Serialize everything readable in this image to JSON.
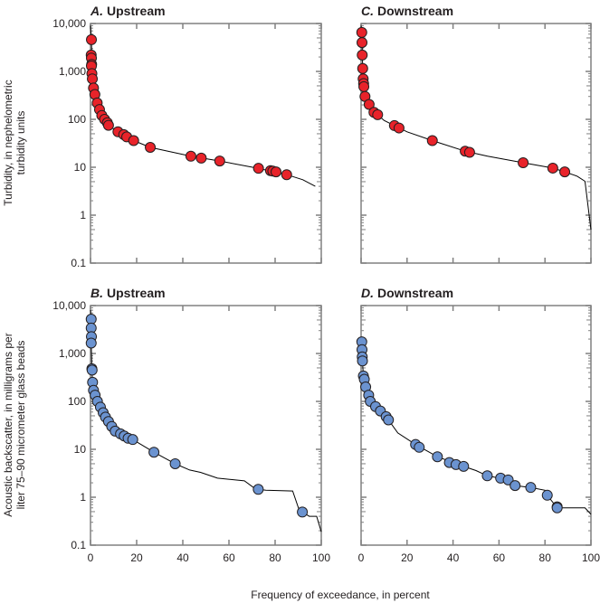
{
  "figure": {
    "xlabel": "Frequency of exceedance, in percent",
    "ylabel_top": [
      "Turbidity, in nephelometric",
      "turbidity units"
    ],
    "ylabel_bottom": [
      "Acoustic backscatter, in milligrams per",
      "liter 75–90 micrometer glass beads"
    ],
    "colors": {
      "turbidity_points": "#e8232a",
      "backscatter_points": "#6b93d0",
      "curve": "#000000",
      "axes": "#808080"
    }
  },
  "chart_data": [
    {
      "type": "scatter",
      "letter": "A.",
      "title": "Upstream",
      "xlim": [
        0,
        100
      ],
      "ylim": [
        0.1,
        10000
      ],
      "yscale": "log",
      "xticks": [
        "0",
        "20",
        "40",
        "60",
        "80",
        "100"
      ],
      "yticks": [
        "0.1",
        "1",
        "10",
        "100",
        "1,000",
        "10,000"
      ],
      "point_color": "#e8232a",
      "points": [
        [
          0.4,
          4600
        ],
        [
          0.3,
          2200
        ],
        [
          0.4,
          1900
        ],
        [
          0.5,
          1400
        ],
        [
          0.4,
          1300
        ],
        [
          0.6,
          900
        ],
        [
          0.8,
          700
        ],
        [
          1.3,
          450
        ],
        [
          1.9,
          330
        ],
        [
          2.9,
          220
        ],
        [
          3.9,
          160
        ],
        [
          4.9,
          120
        ],
        [
          6.1,
          100
        ],
        [
          7.3,
          85
        ],
        [
          7.8,
          75
        ],
        [
          11.9,
          55
        ],
        [
          14.4,
          48
        ],
        [
          15.7,
          43
        ],
        [
          18.7,
          36
        ],
        [
          25.9,
          26
        ],
        [
          43.5,
          17
        ],
        [
          48,
          15.5
        ],
        [
          56,
          13.5
        ],
        [
          72.8,
          9.5
        ],
        [
          78,
          8.5
        ],
        [
          79,
          8.3
        ],
        [
          80.4,
          8
        ],
        [
          85,
          7
        ]
      ],
      "curve": [
        [
          0,
          9000
        ],
        [
          0.4,
          4600
        ],
        [
          0.8,
          700
        ],
        [
          1.3,
          450
        ],
        [
          2.9,
          220
        ],
        [
          4.9,
          120
        ],
        [
          7.8,
          75
        ],
        [
          11.9,
          55
        ],
        [
          18.7,
          36
        ],
        [
          25.9,
          26
        ],
        [
          43.5,
          17
        ],
        [
          56,
          13.5
        ],
        [
          72.8,
          9.5
        ],
        [
          85,
          7
        ],
        [
          92,
          5.5
        ],
        [
          97.4,
          4
        ]
      ]
    },
    {
      "type": "scatter",
      "letter": "B.",
      "title": "Upstream",
      "xlim": [
        0,
        100
      ],
      "ylim": [
        0.1,
        10000
      ],
      "yscale": "log",
      "xticks": [
        "0",
        "20",
        "40",
        "60",
        "80",
        "100"
      ],
      "yticks": [
        "0.1",
        "1",
        "10",
        "100",
        "1,000",
        "10,000"
      ],
      "point_color": "#6b93d0",
      "points": [
        [
          0.3,
          5200
        ],
        [
          0.3,
          3400
        ],
        [
          0.4,
          2250
        ],
        [
          0.3,
          1650
        ],
        [
          0.6,
          480
        ],
        [
          0.7,
          450
        ],
        [
          0.9,
          250
        ],
        [
          1.3,
          170
        ],
        [
          2,
          135
        ],
        [
          3,
          100
        ],
        [
          4.3,
          76
        ],
        [
          5.5,
          58
        ],
        [
          6.5,
          47
        ],
        [
          7.8,
          38
        ],
        [
          9.2,
          30
        ],
        [
          10.7,
          24
        ],
        [
          13,
          21
        ],
        [
          14.6,
          19
        ],
        [
          16.3,
          17
        ],
        [
          18.3,
          16
        ],
        [
          27.5,
          8.7
        ],
        [
          36.7,
          5
        ],
        [
          72.7,
          1.46
        ],
        [
          91.8,
          0.49
        ]
      ],
      "curve": [
        [
          0,
          8000
        ],
        [
          0.3,
          5200
        ],
        [
          0.3,
          1650
        ],
        [
          0.6,
          480
        ],
        [
          0.9,
          250
        ],
        [
          2,
          135
        ],
        [
          3,
          100
        ],
        [
          5.5,
          58
        ],
        [
          7.8,
          38
        ],
        [
          10.7,
          24
        ],
        [
          14.6,
          19
        ],
        [
          18.3,
          16
        ],
        [
          27.5,
          8.7
        ],
        [
          36.7,
          5
        ],
        [
          43,
          3.7
        ],
        [
          47.7,
          3.3
        ],
        [
          55,
          2.5
        ],
        [
          66.7,
          2.2
        ],
        [
          70.6,
          1.6
        ],
        [
          72.7,
          1.46
        ],
        [
          76,
          1.4
        ],
        [
          87.6,
          1.35
        ],
        [
          90.2,
          0.58
        ],
        [
          91.8,
          0.49
        ],
        [
          94.8,
          0.4
        ],
        [
          98,
          0.4
        ],
        [
          100,
          0.19
        ]
      ]
    },
    {
      "type": "scatter",
      "letter": "C.",
      "title": "Downstream",
      "xlim": [
        0,
        100
      ],
      "ylim": [
        0.1,
        10000
      ],
      "yscale": "log",
      "xticks": [
        "0",
        "20",
        "40",
        "60",
        "80",
        "100"
      ],
      "yticks": [
        "0.1",
        "1",
        "10",
        "100",
        "1,000",
        "10,000"
      ],
      "point_color": "#e8232a",
      "points": [
        [
          0.3,
          6500
        ],
        [
          0.4,
          4000
        ],
        [
          0.5,
          2200
        ],
        [
          0.7,
          1150
        ],
        [
          0.9,
          700
        ],
        [
          1.1,
          560
        ],
        [
          1.2,
          480
        ],
        [
          1.7,
          300
        ],
        [
          3.5,
          205
        ],
        [
          5.6,
          140
        ],
        [
          7.2,
          125
        ],
        [
          14.5,
          74
        ],
        [
          16.5,
          66
        ],
        [
          31,
          36
        ],
        [
          45.3,
          21.6
        ],
        [
          47.2,
          20.5
        ],
        [
          70.5,
          12.4
        ],
        [
          83.4,
          9.6
        ],
        [
          88.6,
          8
        ]
      ],
      "curve": [
        [
          0,
          9000
        ],
        [
          0.3,
          6500
        ],
        [
          0.7,
          1150
        ],
        [
          1.2,
          480
        ],
        [
          1.7,
          300
        ],
        [
          3.5,
          205
        ],
        [
          5.6,
          140
        ],
        [
          7.2,
          125
        ],
        [
          10,
          95
        ],
        [
          14.5,
          74
        ],
        [
          20,
          55
        ],
        [
          31,
          36
        ],
        [
          45.3,
          21.6
        ],
        [
          55,
          17
        ],
        [
          70.5,
          12.4
        ],
        [
          83.4,
          9.6
        ],
        [
          88.6,
          8
        ],
        [
          94,
          6.5
        ],
        [
          97.4,
          5.1
        ],
        [
          100,
          0.5
        ]
      ]
    },
    {
      "type": "scatter",
      "letter": "D.",
      "title": "Downstream",
      "xlim": [
        0,
        100
      ],
      "ylim": [
        0.1,
        10000
      ],
      "yscale": "log",
      "xticks": [
        "0",
        "20",
        "40",
        "60",
        "80",
        "100"
      ],
      "yticks": [
        "0.1",
        "1",
        "10",
        "100",
        "1,000",
        "10,000"
      ],
      "point_color": "#6b93d0",
      "points": [
        [
          0.3,
          1750
        ],
        [
          0.4,
          1200
        ],
        [
          0.5,
          850
        ],
        [
          0.6,
          700
        ],
        [
          1,
          340
        ],
        [
          1.4,
          290
        ],
        [
          2,
          200
        ],
        [
          3.3,
          135
        ],
        [
          4,
          100
        ],
        [
          6.3,
          78
        ],
        [
          8.4,
          63
        ],
        [
          10.9,
          48
        ],
        [
          11.9,
          41
        ],
        [
          23.7,
          12.6
        ],
        [
          25.3,
          11
        ],
        [
          33.2,
          7
        ],
        [
          38.4,
          5.3
        ],
        [
          41.3,
          4.8
        ],
        [
          44.6,
          4.4
        ],
        [
          54.9,
          2.8
        ],
        [
          60.7,
          2.5
        ],
        [
          64,
          2.3
        ],
        [
          67,
          1.75
        ],
        [
          73.8,
          1.6
        ],
        [
          81,
          1.1
        ],
        [
          85.3,
          0.63
        ],
        [
          85.3,
          0.6
        ]
      ],
      "curve": [
        [
          0,
          2000
        ],
        [
          0.3,
          1750
        ],
        [
          0.6,
          700
        ],
        [
          1,
          340
        ],
        [
          2,
          200
        ],
        [
          3.3,
          135
        ],
        [
          4,
          100
        ],
        [
          8.4,
          63
        ],
        [
          11.9,
          41
        ],
        [
          16,
          22
        ],
        [
          23.7,
          12.6
        ],
        [
          33.2,
          7
        ],
        [
          44.6,
          4.4
        ],
        [
          50,
          3.6
        ],
        [
          54.9,
          2.8
        ],
        [
          64,
          2.3
        ],
        [
          67,
          1.75
        ],
        [
          73.8,
          1.6
        ],
        [
          80,
          1.4
        ],
        [
          81,
          1.1
        ],
        [
          85.3,
          0.6
        ],
        [
          97.4,
          0.6
        ],
        [
          100,
          0.44
        ]
      ]
    }
  ]
}
